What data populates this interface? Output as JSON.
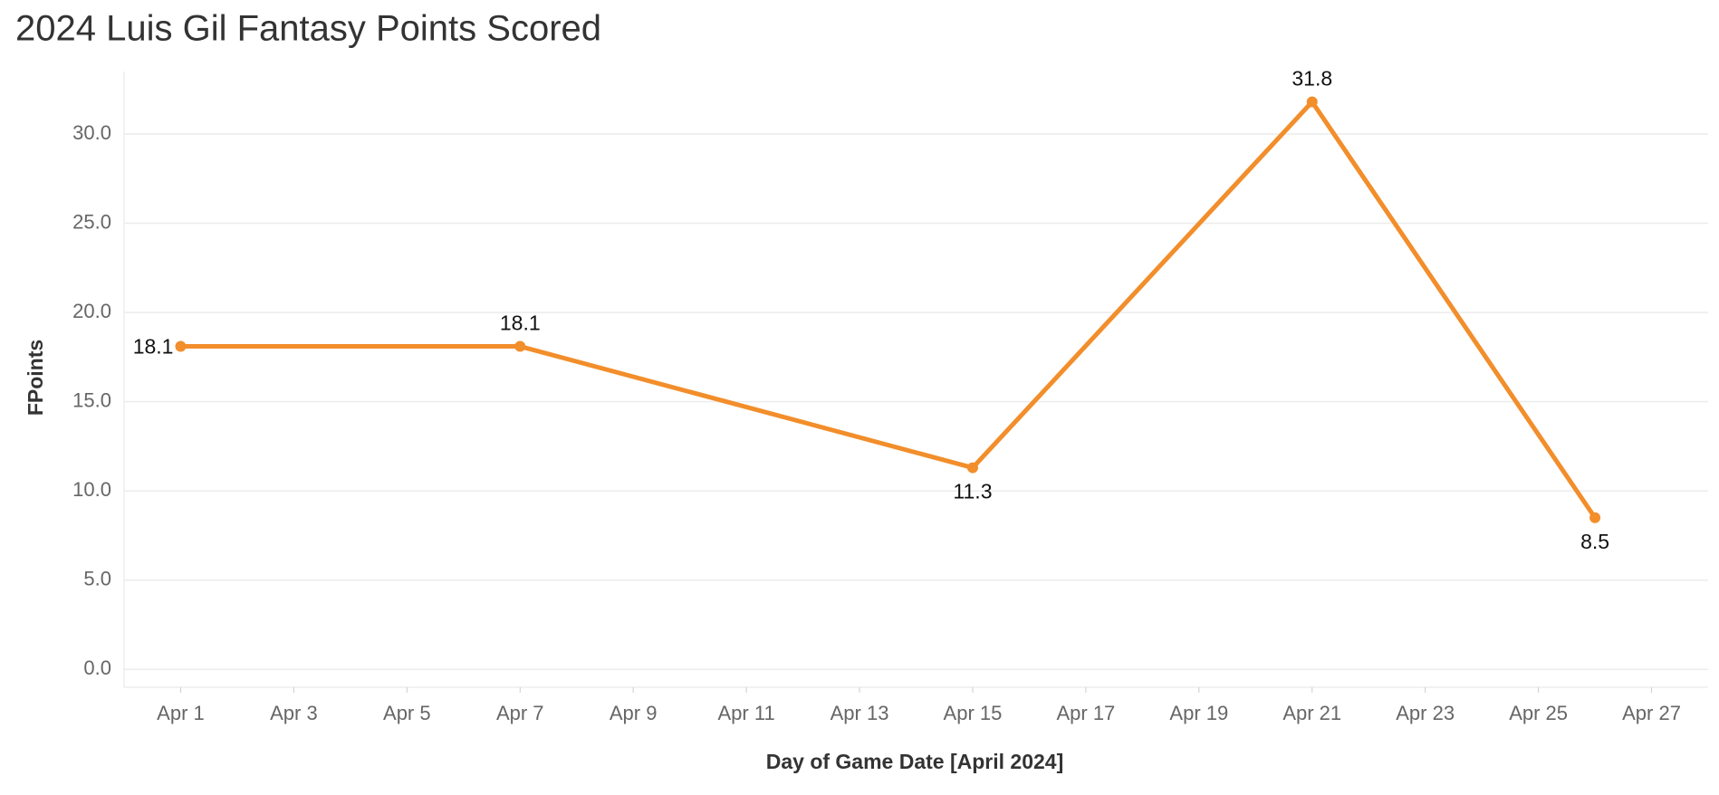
{
  "chart_data": {
    "type": "line",
    "title": "2024 Luis Gil Fantasy Points Scored",
    "x_label": "Day of Game Date [April 2024]",
    "y_label": "FPoints",
    "x": [
      "2024-04-01",
      "2024-04-07",
      "2024-04-15",
      "2024-04-21",
      "2024-04-26"
    ],
    "series": [
      {
        "name": "FPoints",
        "color": "#f28e2b",
        "values": [
          18.1,
          18.1,
          11.3,
          31.8,
          8.5
        ]
      }
    ],
    "xlim": [
      "2024-03-31",
      "2024-04-28"
    ],
    "xticks": [
      {
        "value": "2024-04-01",
        "label": "Apr 1"
      },
      {
        "value": "2024-04-03",
        "label": "Apr 3"
      },
      {
        "value": "2024-04-05",
        "label": "Apr 5"
      },
      {
        "value": "2024-04-07",
        "label": "Apr 7"
      },
      {
        "value": "2024-04-09",
        "label": "Apr 9"
      },
      {
        "value": "2024-04-11",
        "label": "Apr 11"
      },
      {
        "value": "2024-04-13",
        "label": "Apr 13"
      },
      {
        "value": "2024-04-15",
        "label": "Apr 15"
      },
      {
        "value": "2024-04-17",
        "label": "Apr 17"
      },
      {
        "value": "2024-04-19",
        "label": "Apr 19"
      },
      {
        "value": "2024-04-21",
        "label": "Apr 21"
      },
      {
        "value": "2024-04-23",
        "label": "Apr 23"
      },
      {
        "value": "2024-04-25",
        "label": "Apr 25"
      },
      {
        "value": "2024-04-27",
        "label": "Apr 27"
      }
    ],
    "ylim": [
      -1,
      33.5
    ],
    "yticks": [
      {
        "value": 0,
        "label": "0.0"
      },
      {
        "value": 5,
        "label": "5.0"
      },
      {
        "value": 10,
        "label": "10.0"
      },
      {
        "value": 15,
        "label": "15.0"
      },
      {
        "value": 20,
        "label": "20.0"
      },
      {
        "value": 25,
        "label": "25.0"
      },
      {
        "value": 30,
        "label": "30.0"
      }
    ],
    "grid": true
  }
}
